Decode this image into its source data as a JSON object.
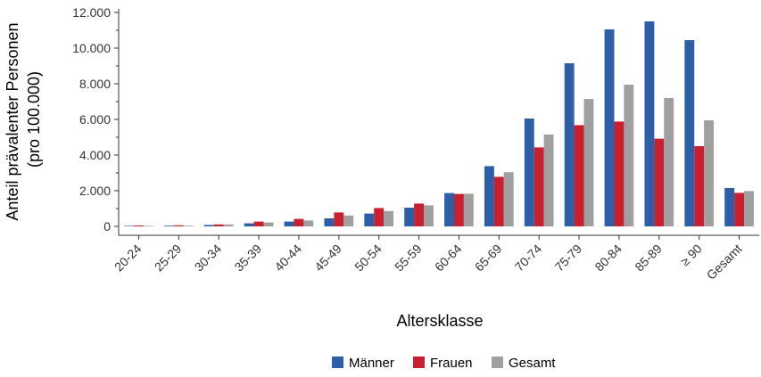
{
  "chart_data": {
    "type": "bar",
    "xlabel": "Altersklasse",
    "ylabel_lines": [
      "Anteil prävalenter Personen",
      "(pro 100.000)"
    ],
    "ylim": [
      0,
      12000
    ],
    "yticks": [
      0,
      2000,
      4000,
      6000,
      8000,
      10000,
      12000
    ],
    "ytick_labels": [
      "0",
      "2.000",
      "4.000",
      "6.000",
      "8.000",
      "10.000",
      "12.000"
    ],
    "categories": [
      "20-24",
      "25-29",
      "30-34",
      "35-39",
      "40-44",
      "45-49",
      "50-54",
      "55-59",
      "60-64",
      "65-69",
      "70-74",
      "75-79",
      "80-84",
      "85-89",
      "≥ 90",
      "Gesamt"
    ],
    "series": [
      {
        "name": "Männer",
        "color": "#2c5fa8",
        "values": [
          30,
          40,
          80,
          170,
          270,
          450,
          720,
          1050,
          1870,
          3380,
          6050,
          9150,
          11050,
          11500,
          10450,
          2150
        ]
      },
      {
        "name": "Frauen",
        "color": "#c8202f",
        "values": [
          50,
          60,
          110,
          270,
          420,
          780,
          1030,
          1280,
          1820,
          2780,
          4430,
          5680,
          5880,
          4920,
          4500,
          1880
        ]
      },
      {
        "name": "Gesamt",
        "color": "#a0a0a0",
        "values": [
          30,
          40,
          110,
          220,
          330,
          610,
          860,
          1180,
          1830,
          3040,
          5150,
          7150,
          7950,
          7200,
          5950,
          1980
        ]
      }
    ],
    "legend_position": "bottom",
    "grid": false
  }
}
